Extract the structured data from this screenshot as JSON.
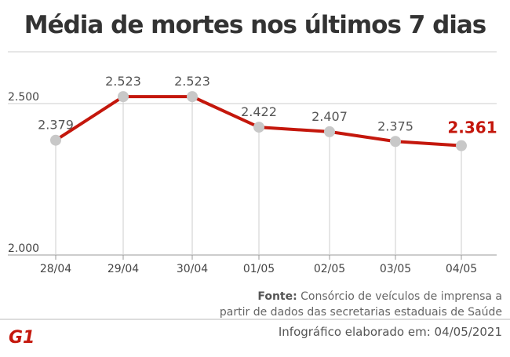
{
  "chart_data": {
    "type": "line",
    "title": "Média de mortes nos últimos 7 dias",
    "categories": [
      "28/04",
      "29/04",
      "30/04",
      "01/05",
      "02/05",
      "03/05",
      "04/05"
    ],
    "values": [
      2379,
      2523,
      2523,
      2422,
      2407,
      2375,
      2361
    ],
    "value_labels": [
      "2.379",
      "2.523",
      "2.523",
      "2.422",
      "2.407",
      "2.375",
      "2.361"
    ],
    "yticks": [
      {
        "value": 2000,
        "label": "2.000"
      },
      {
        "value": 2500,
        "label": "2.500"
      }
    ],
    "ylim": [
      2000,
      2670
    ],
    "grid": true,
    "colors": {
      "line": "#c4170c",
      "point": "#c8c8c8",
      "highlight_label": "#c4170c"
    }
  },
  "footer": {
    "source_label": "Fonte:",
    "source_line1": "Consórcio de veículos de imprensa a",
    "source_line2": "partir de dados das secretarias estaduais de Saúde",
    "info": "Infográfico elaborado em: 04/05/2021",
    "logo": "G1"
  }
}
